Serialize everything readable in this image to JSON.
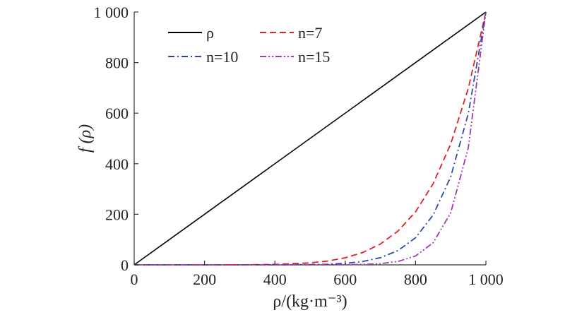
{
  "chart_data": {
    "type": "line",
    "xlabel": "ρ/(kg·m⁻³)",
    "ylabel": "f (ρ)",
    "xlim": [
      0,
      1000
    ],
    "ylim": [
      0,
      1000
    ],
    "x_ticks": [
      "0",
      "200",
      "400",
      "600",
      "800",
      "1 000"
    ],
    "y_ticks": [
      "0",
      "200",
      "400",
      "600",
      "800",
      "1 000"
    ],
    "legend_position": "top",
    "series": [
      {
        "name": "ρ",
        "color": "#000000",
        "dash": "solid",
        "x": [
          0,
          1000
        ],
        "y": [
          0,
          1000
        ]
      },
      {
        "name": "n=7",
        "color": "#e0202a",
        "dash": "dashed",
        "x": [
          0,
          100,
          200,
          300,
          400,
          500,
          550,
          600,
          650,
          700,
          750,
          800,
          850,
          900,
          950,
          1000
        ],
        "y": [
          0,
          0,
          0,
          0.2,
          1.6,
          7.8,
          15.2,
          28,
          49,
          82.4,
          133.5,
          209.7,
          320.6,
          478.3,
          698.3,
          1000
        ]
      },
      {
        "name": "n=10",
        "color": "#2a4aa8",
        "dash": "dashdot",
        "x": [
          0,
          100,
          200,
          300,
          400,
          500,
          550,
          600,
          650,
          700,
          750,
          800,
          850,
          900,
          950,
          1000
        ],
        "y": [
          0,
          0,
          0,
          0,
          0,
          1,
          2.5,
          6,
          13.5,
          28.2,
          56.3,
          107.4,
          196.9,
          348.7,
          598.7,
          1000
        ]
      },
      {
        "name": "n=15",
        "color": "#a03ab0",
        "dash": "dashdotdot",
        "x": [
          0,
          100,
          200,
          300,
          400,
          500,
          550,
          600,
          650,
          700,
          750,
          800,
          850,
          900,
          950,
          1000
        ],
        "y": [
          0,
          0,
          0,
          0,
          0,
          0,
          0.1,
          0.5,
          1.6,
          4.7,
          13.4,
          35.2,
          87.4,
          205.9,
          463.3,
          1000
        ]
      }
    ]
  }
}
